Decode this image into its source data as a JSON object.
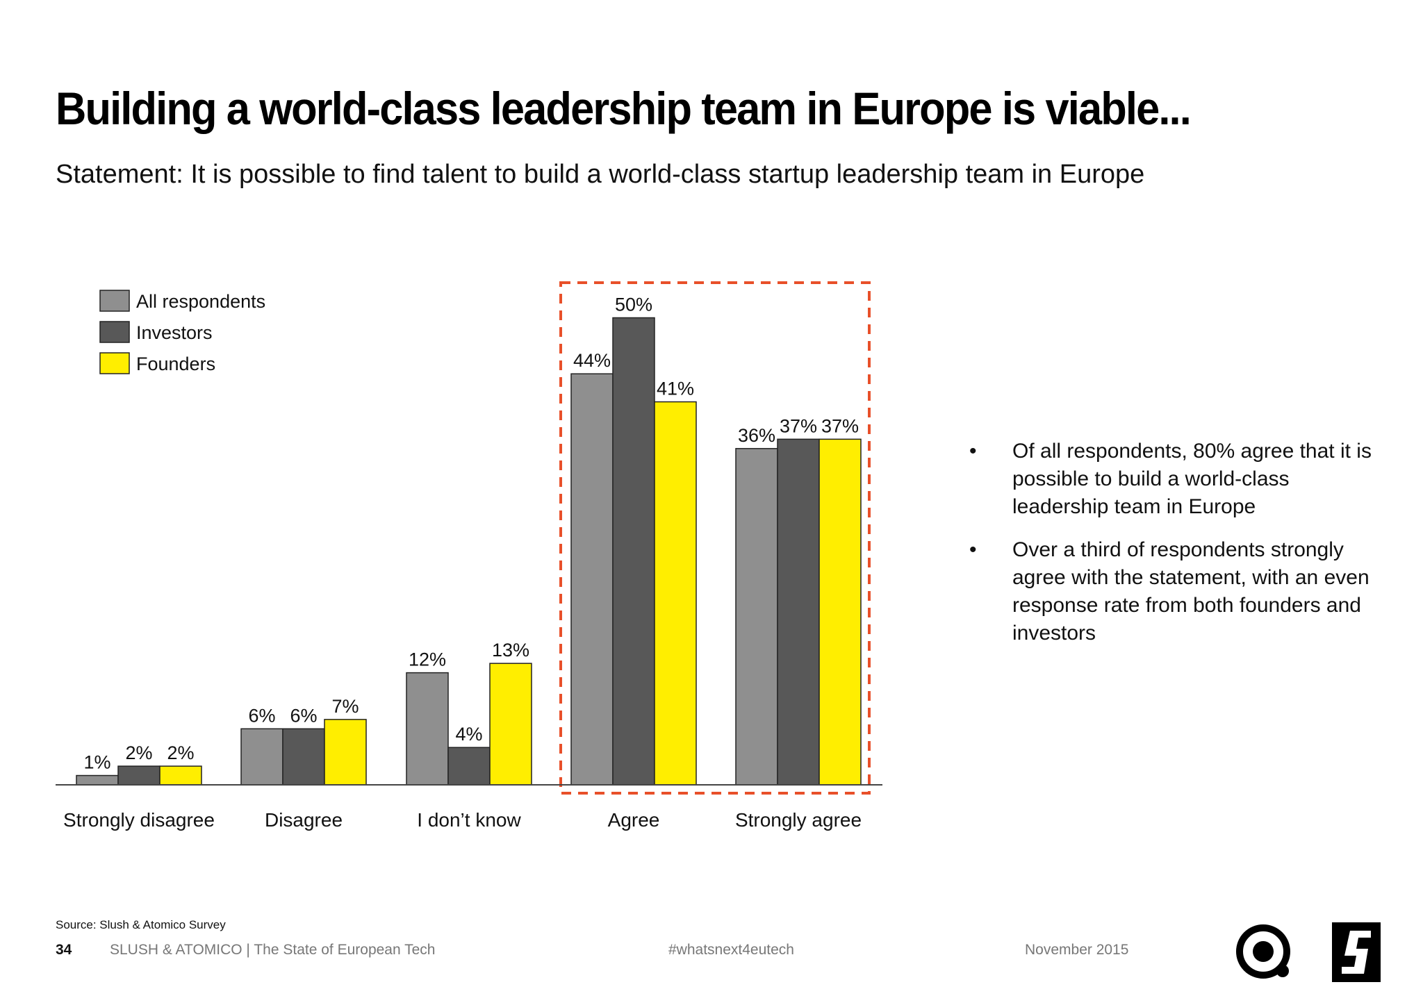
{
  "title": "Building a world-class leadership team in Europe is viable...",
  "subtitle": "Statement: It is possible to find talent to build a world-class startup leadership team in Europe",
  "chart_data": {
    "type": "bar",
    "categories": [
      "Strongly disagree",
      "Disagree",
      "I don’t know",
      "Agree",
      "Strongly agree"
    ],
    "series": [
      {
        "name": "All respondents",
        "values": [
          1,
          6,
          12,
          44,
          36
        ],
        "color": "#8f8f8f"
      },
      {
        "name": "Investors",
        "values": [
          2,
          6,
          4,
          50,
          37
        ],
        "color": "#585858"
      },
      {
        "name": "Founders",
        "values": [
          2,
          7,
          13,
          41,
          37
        ],
        "color": "#ffee00"
      }
    ],
    "value_suffix": "%",
    "ylim": [
      0,
      55
    ],
    "legend_position": "top-left",
    "highlight_categories": [
      "Agree",
      "Strongly agree"
    ],
    "highlight_color": "#e8502a",
    "grid": false
  },
  "bullets": [
    "Of all respondents, 80% agree that it is possible to build a world-class leadership team in Europe",
    "Over a third of respondents strongly agree with the statement, with an even response rate from both founders and investors"
  ],
  "source": "Source: Slush & Atomico Survey",
  "footer": {
    "page_number": "34",
    "org": "SLUSH & ATOMICO | The State of European Tech",
    "hashtag": "#whatsnext4eutech",
    "date": "November 2015"
  },
  "logos": [
    "atomico-logo-icon",
    "slush-logo-icon"
  ]
}
